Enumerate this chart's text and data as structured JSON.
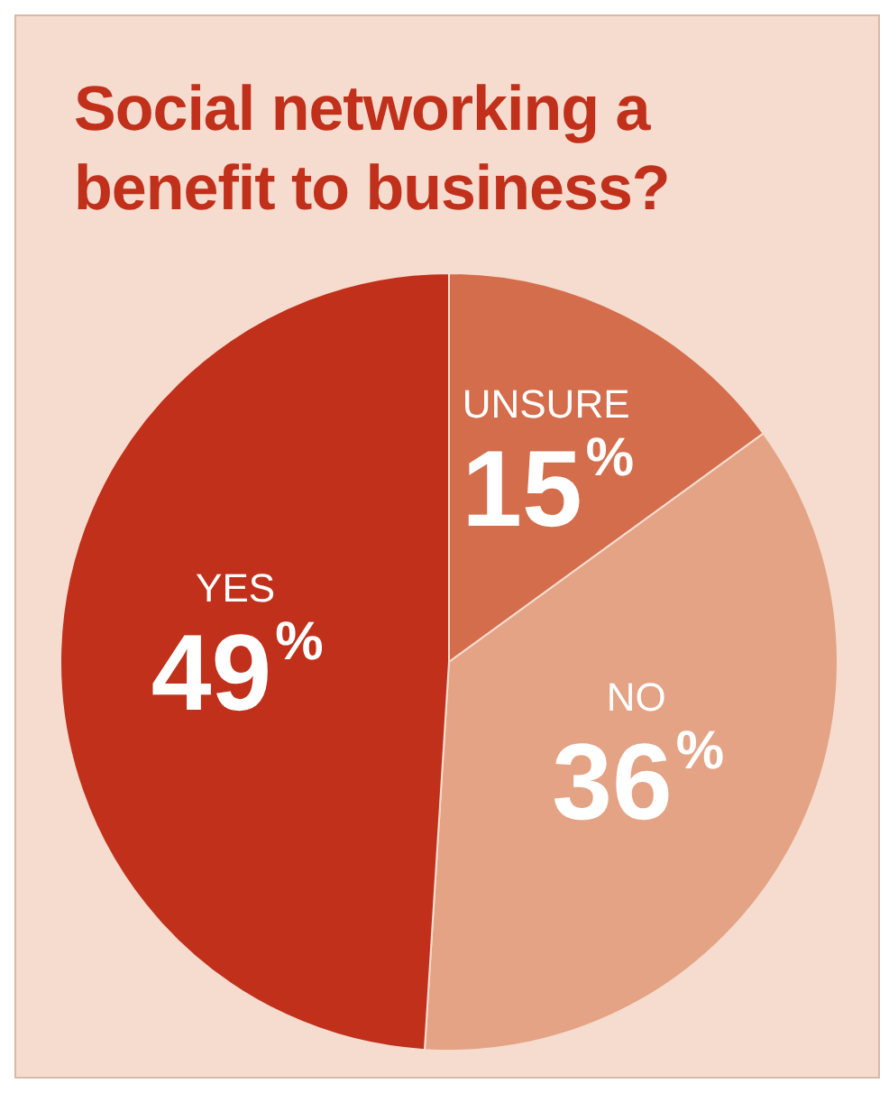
{
  "chart_data": {
    "type": "pie",
    "title": "Social networking a benefit to business?",
    "categories": [
      "UNSURE",
      "NO",
      "YES"
    ],
    "values": [
      15,
      36,
      49
    ],
    "value_labels": [
      "15%",
      "36%",
      "49%"
    ],
    "colors": [
      "#d46d4b",
      "#e4a385",
      "#c1301b"
    ],
    "legend": false
  }
}
